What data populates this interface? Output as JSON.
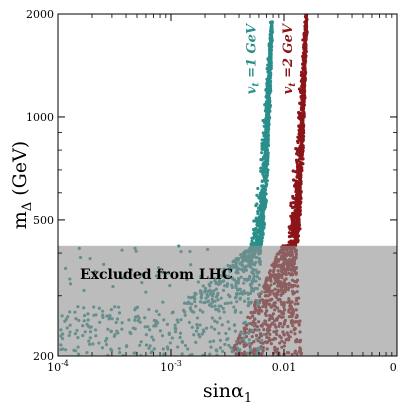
{
  "chart_data": {
    "type": "scatter",
    "title": "",
    "xlabel": "sinα",
    "xlabel_sub": "1",
    "ylabel": "m",
    "ylabel_sub": "Δ",
    "ylabel_unit": "(GeV)",
    "xscale": "log",
    "yscale": "log",
    "xlim": [
      0.0001,
      0.1
    ],
    "ylim": [
      200,
      2000
    ],
    "x_ticks": [
      {
        "value": 0.0001,
        "label": "10",
        "sup": "-4"
      },
      {
        "value": 0.001,
        "label": "10",
        "sup": "-3"
      },
      {
        "value": 0.01,
        "label": "0.01",
        "sup": ""
      },
      {
        "value": 0.1,
        "label": "0.",
        "sup": ""
      }
    ],
    "y_ticks": [
      {
        "value": 200,
        "label": "200"
      },
      {
        "value": 500,
        "label": "500"
      },
      {
        "value": 1000,
        "label": "1000"
      },
      {
        "value": 2000,
        "label": "2000"
      }
    ],
    "excluded_region": {
      "label": "Excluded from LHC",
      "y_min": 200,
      "y_max": 420
    },
    "series": [
      {
        "name": "v_t =1 GeV",
        "label_main": "v",
        "label_sub": "t",
        "label_rest": " =1 GeV",
        "color": "#2a8f8a",
        "x_at_ymax": 0.0079,
        "x_at_420": 0.0062,
        "y_top": 1900,
        "points": 1400
      },
      {
        "name": "v_t =2 GeV",
        "label_main": "v",
        "label_sub": "t",
        "label_rest": " =2 GeV",
        "color": "#8b1518",
        "x_at_ymax": 0.0159,
        "x_at_420": 0.0128,
        "y_top": 2000,
        "points": 1400
      }
    ],
    "grid": false,
    "legend": "none"
  }
}
